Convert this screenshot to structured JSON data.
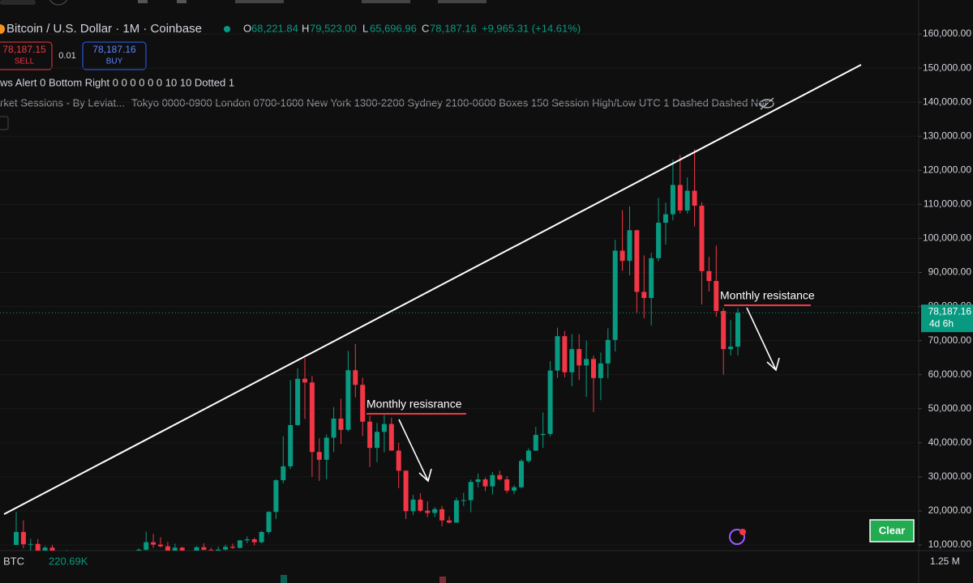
{
  "header": {
    "symbol": "Bitcoin / U.S. Dollar · 1M · Coinbase",
    "o_label": "O",
    "o_value": "68,221.84",
    "h_label": "H",
    "h_value": "79,523.00",
    "l_label": "L",
    "l_value": "65,696.96",
    "c_label": "C",
    "c_value": "78,187.16",
    "change": "+9,965.31 (+14.61%)"
  },
  "trade": {
    "sell_price": "78,187.15",
    "sell_label": "SELL",
    "quantity": "0.01",
    "buy_price": "78,187.16",
    "buy_label": "BUY"
  },
  "indicators": {
    "news_alert": "ws Alert 0 Bottom Right 0 0 0 0 0 0 10 10 Dotted 1",
    "sessions_name": "rket Sessions - By Leviat...",
    "sessions_params": "Tokyo 0000-0900 London 0700-1600 New York 1300-2200 Sydney 2100-0600 Boxes 150 Session High/Low UTC 1 Dashed Dashed Nor"
  },
  "volume_pane": {
    "symbol": "BTC",
    "value": "220.69K",
    "scale_label": "1.25 M"
  },
  "button": {
    "label": "Clear"
  },
  "chart_data": {
    "type": "candlestick",
    "up_color": "#089981",
    "down_color": "#f23645",
    "grid": true,
    "ylim": [
      8336,
      170000
    ],
    "yticks": [
      {
        "value": 10000,
        "label": "10,000.00"
      },
      {
        "value": 20000,
        "label": "20,000.00"
      },
      {
        "value": 30000,
        "label": "30,000.00"
      },
      {
        "value": 40000,
        "label": "40,000.00"
      },
      {
        "value": 50000,
        "label": "50,000.00"
      },
      {
        "value": 60000,
        "label": "60,000.00"
      },
      {
        "value": 70000,
        "label": "70,000.00"
      },
      {
        "value": 80000,
        "label": "80,000.00"
      },
      {
        "value": 90000,
        "label": "90,000.00"
      },
      {
        "value": 100000,
        "label": "100,000.00"
      },
      {
        "value": 110000,
        "label": "110,000.00"
      },
      {
        "value": 120000,
        "label": "120,000.00"
      },
      {
        "value": 130000,
        "label": "130,000.00"
      },
      {
        "value": 140000,
        "label": "140,000.00"
      },
      {
        "value": 150000,
        "label": "150,000.00"
      },
      {
        "value": 160000,
        "label": "160,000.00"
      }
    ],
    "last_price": 78187.16,
    "last_price_label": "78,187.16",
    "countdown": "4d 6h",
    "annotations": [
      "Monthly resisrance",
      "Monthly resistance"
    ],
    "open": [
      10000,
      13800,
      10200,
      10300,
      6900,
      9200,
      7500,
      6400,
      7700,
      7000,
      6600,
      6300,
      4000,
      3700,
      3400,
      3800,
      4100,
      5300,
      8600,
      10800,
      10100,
      9600,
      8300,
      9200,
      7600,
      7200,
      9350,
      8550,
      6400,
      8650,
      9450,
      9140,
      11350,
      11650,
      10800,
      13800,
      19700,
      29000,
      33100,
      45200,
      58800,
      57700,
      37300,
      35000,
      41500,
      47100,
      43800,
      61300,
      57000,
      46200,
      38500,
      43200,
      45500,
      37700,
      31800,
      19900,
      23300,
      20050,
      19400,
      20500,
      17200,
      16550,
      23100,
      23150,
      28500,
      29250,
      27200,
      30500,
      29250,
      25950,
      26950,
      34650,
      37700,
      42300,
      42600,
      61200,
      71300,
      60700,
      67500,
      62700,
      64600,
      59000,
      63300,
      70200,
      96400,
      93400,
      102400,
      84300,
      82500,
      94200,
      104600,
      107100,
      115700,
      108200,
      114000,
      109600,
      90400,
      87500,
      78700,
      67500,
      68221.84
    ],
    "high": [
      19700,
      17200,
      11800,
      11700,
      9700,
      10000,
      7800,
      8500,
      7800,
      7400,
      7000,
      6600,
      4300,
      4100,
      4200,
      4100,
      5600,
      9000,
      13900,
      13200,
      12300,
      10900,
      10400,
      9500,
      7800,
      9600,
      10500,
      9200,
      9500,
      10100,
      10400,
      11450,
      12500,
      12100,
      14100,
      19900,
      29300,
      41900,
      58400,
      61800,
      64900,
      59600,
      41300,
      42400,
      50500,
      52900,
      67000,
      69000,
      59100,
      48000,
      45800,
      48200,
      47400,
      40000,
      31900,
      24700,
      25200,
      22800,
      21100,
      21500,
      18400,
      23900,
      25300,
      29200,
      31000,
      29800,
      31400,
      31800,
      30200,
      27500,
      35200,
      38400,
      44700,
      48900,
      64000,
      73800,
      72800,
      71900,
      71900,
      70000,
      65600,
      66500,
      73600,
      99600,
      108300,
      109400,
      102500,
      95000,
      95800,
      111900,
      110500,
      123200,
      124500,
      117900,
      126200,
      110600,
      94600,
      97900,
      79500,
      76000,
      79523
    ],
    "low": [
      10000,
      9000,
      6000,
      6600,
      6500,
      7000,
      5800,
      6100,
      5900,
      6100,
      6200,
      3600,
      3100,
      3400,
      3400,
      3700,
      4100,
      5300,
      7500,
      9100,
      9300,
      7700,
      7300,
      6500,
      6400,
      6900,
      8500,
      3800,
      6200,
      8100,
      8900,
      8950,
      10500,
      9900,
      10400,
      13200,
      17600,
      28100,
      32300,
      45000,
      47000,
      30000,
      28800,
      29300,
      37300,
      39600,
      43300,
      53300,
      42000,
      32900,
      34300,
      37200,
      37700,
      26700,
      17600,
      18800,
      19600,
      18200,
      18200,
      15500,
      16300,
      16500,
      21400,
      19600,
      26900,
      25800,
      24800,
      28900,
      25200,
      24900,
      26600,
      34100,
      37600,
      38500,
      41900,
      59000,
      59200,
      56600,
      58400,
      53500,
      49000,
      52500,
      58900,
      66800,
      90500,
      89200,
      78200,
      76600,
      74400,
      93300,
      98200,
      105300,
      107300,
      107300,
      103500,
      80600,
      84400,
      77000,
      60000,
      65600,
      65696.96
    ],
    "close": [
      13800,
      10200,
      10300,
      6900,
      9200,
      7500,
      6400,
      7700,
      7000,
      6600,
      6300,
      4000,
      3700,
      3400,
      3800,
      4100,
      5300,
      8600,
      10800,
      10100,
      9600,
      8300,
      9200,
      7600,
      7200,
      9350,
      8550,
      6400,
      8650,
      9450,
      9140,
      11350,
      11650,
      10800,
      13800,
      19700,
      29000,
      33100,
      45200,
      58800,
      57700,
      37300,
      35000,
      41500,
      47100,
      43800,
      61300,
      57000,
      46200,
      38500,
      43200,
      45500,
      37700,
      31800,
      19900,
      23300,
      20050,
      19400,
      20500,
      17200,
      16550,
      23100,
      23150,
      28500,
      29250,
      27200,
      30500,
      29250,
      25950,
      26950,
      34650,
      37700,
      42300,
      42600,
      61200,
      71300,
      60700,
      67500,
      62700,
      64600,
      59000,
      63300,
      70200,
      96400,
      93400,
      102400,
      84300,
      82500,
      94200,
      104600,
      107100,
      115700,
      108200,
      114000,
      109600,
      90400,
      87500,
      78700,
      67500,
      68221.84,
      78187.16
    ]
  }
}
